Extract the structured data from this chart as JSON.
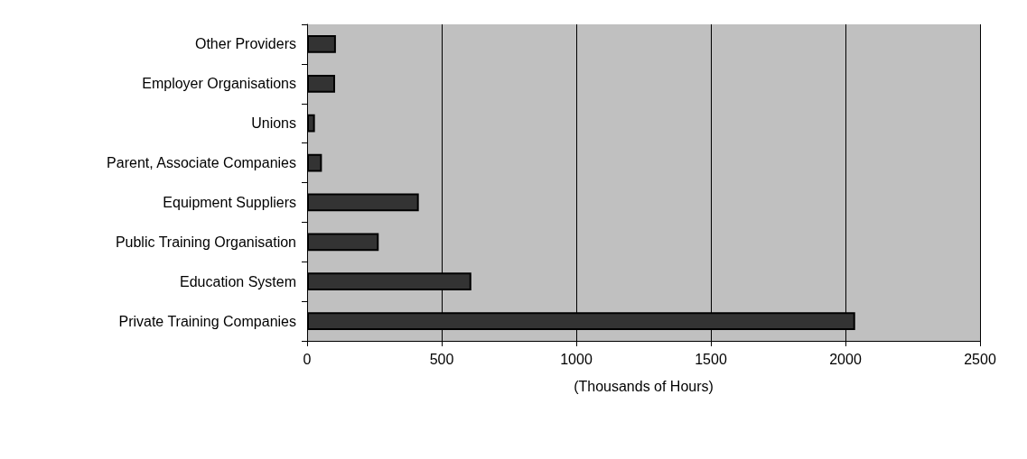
{
  "chart_data": {
    "type": "bar",
    "orientation": "horizontal",
    "xlabel": "(Thousands of Hours)",
    "categories": [
      "Other Providers",
      "Employer Organisations",
      "Unions",
      "Parent, Associate Companies",
      "Equipment Suppliers",
      "Public Training Organisation",
      "Education System",
      "Private Training Companies"
    ],
    "values": [
      107,
      104,
      29,
      55,
      415,
      266,
      610,
      2036
    ],
    "color": "#333333",
    "xlim": [
      0,
      2500
    ],
    "xticks": [
      0,
      500,
      1000,
      1500,
      2000,
      2500
    ],
    "grid": "x"
  }
}
